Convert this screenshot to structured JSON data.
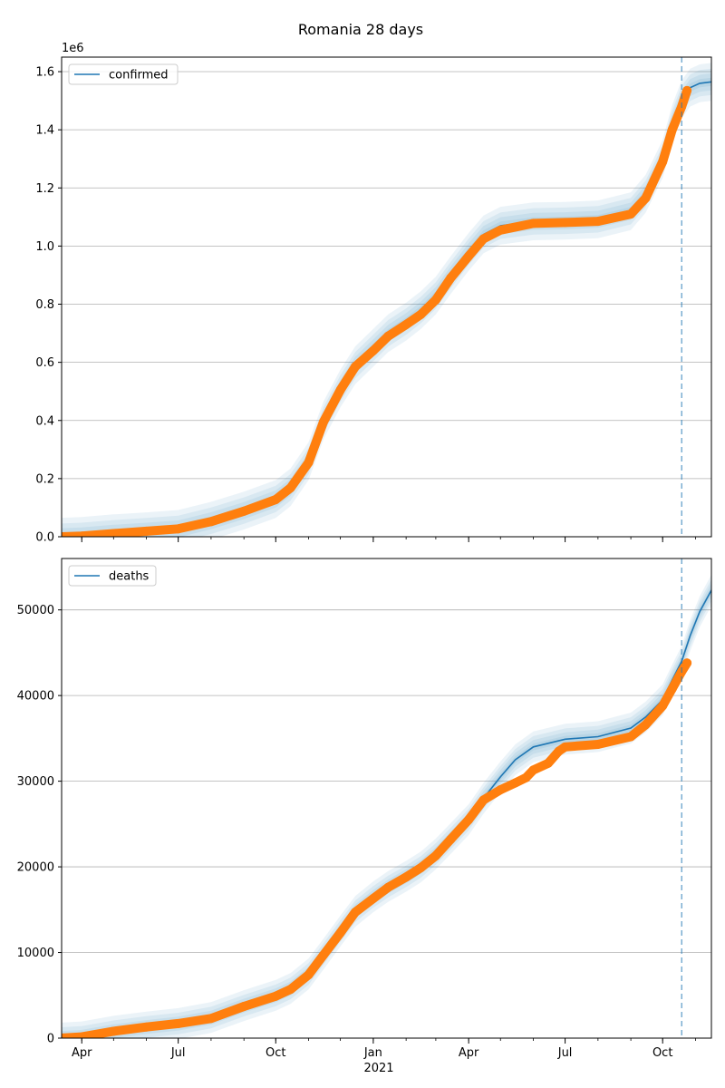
{
  "title": "Romania 28 days",
  "x_year_label": "2021",
  "colors": {
    "model": "#1f77b4",
    "observed": "#ff7f0e",
    "band": "#1f77b4",
    "grid": "#b0b0b0",
    "forecast_line": "#1f77b4"
  },
  "chart_data": [
    {
      "type": "line",
      "legend": "top-left",
      "grid": true,
      "xlim": [
        "2020-03-13",
        "2021-11-16"
      ],
      "forecast_start": "2021-10-19",
      "x_ticks": [
        {
          "date": "2020-04-01",
          "label": "Apr"
        },
        {
          "date": "2020-07-01",
          "label": "Jul"
        },
        {
          "date": "2020-10-01",
          "label": "Oct"
        },
        {
          "date": "2021-01-01",
          "label": "Jan"
        },
        {
          "date": "2021-04-01",
          "label": "Apr"
        },
        {
          "date": "2021-07-01",
          "label": "Jul"
        },
        {
          "date": "2021-10-01",
          "label": "Oct"
        }
      ],
      "x_ticks_visible": false,
      "ylim": [
        0,
        1650000
      ],
      "y_ticks": [
        0,
        200000,
        400000,
        600000,
        800000,
        1000000,
        1200000,
        1400000,
        1600000
      ],
      "y_tick_labels": [
        "0.0",
        "0.2",
        "0.4",
        "0.6",
        "0.8",
        "1.0",
        "1.2",
        "1.4",
        "1.6"
      ],
      "y_offset_label": "1e6",
      "series": [
        {
          "name": "confirmed",
          "role": "model",
          "points": [
            [
              "2020-03-13",
              100
            ],
            [
              "2020-04-01",
              3000
            ],
            [
              "2020-05-01",
              12000
            ],
            [
              "2020-06-01",
              19000
            ],
            [
              "2020-07-01",
              27000
            ],
            [
              "2020-08-01",
              55000
            ],
            [
              "2020-09-01",
              90000
            ],
            [
              "2020-10-01",
              130000
            ],
            [
              "2020-10-15",
              170000
            ],
            [
              "2020-11-01",
              260000
            ],
            [
              "2020-11-15",
              400000
            ],
            [
              "2020-12-01",
              510000
            ],
            [
              "2020-12-15",
              590000
            ],
            [
              "2021-01-01",
              650000
            ],
            [
              "2021-01-15",
              700000
            ],
            [
              "2021-02-01",
              740000
            ],
            [
              "2021-02-15",
              780000
            ],
            [
              "2021-03-01",
              830000
            ],
            [
              "2021-03-15",
              900000
            ],
            [
              "2021-04-01",
              980000
            ],
            [
              "2021-04-15",
              1040000
            ],
            [
              "2021-05-01",
              1070000
            ],
            [
              "2021-06-01",
              1085000
            ],
            [
              "2021-07-01",
              1087000
            ],
            [
              "2021-08-01",
              1092000
            ],
            [
              "2021-09-01",
              1120000
            ],
            [
              "2021-09-15",
              1180000
            ],
            [
              "2021-10-01",
              1300000
            ],
            [
              "2021-10-10",
              1420000
            ],
            [
              "2021-10-19",
              1505000
            ],
            [
              "2021-10-27",
              1545000
            ],
            [
              "2021-11-05",
              1560000
            ],
            [
              "2021-11-16",
              1565000
            ]
          ],
          "band_spread": 65000
        },
        {
          "name": "",
          "role": "observed",
          "points": [
            [
              "2020-03-13",
              100
            ],
            [
              "2020-04-01",
              2500
            ],
            [
              "2020-05-01",
              11000
            ],
            [
              "2020-06-01",
              19000
            ],
            [
              "2020-07-01",
              27000
            ],
            [
              "2020-08-01",
              52000
            ],
            [
              "2020-09-01",
              88000
            ],
            [
              "2020-10-01",
              128000
            ],
            [
              "2020-10-15",
              168000
            ],
            [
              "2020-11-01",
              255000
            ],
            [
              "2020-11-15",
              395000
            ],
            [
              "2020-12-01",
              505000
            ],
            [
              "2020-12-15",
              585000
            ],
            [
              "2021-01-01",
              640000
            ],
            [
              "2021-01-15",
              690000
            ],
            [
              "2021-02-01",
              730000
            ],
            [
              "2021-02-15",
              765000
            ],
            [
              "2021-03-01",
              815000
            ],
            [
              "2021-03-15",
              890000
            ],
            [
              "2021-04-01",
              965000
            ],
            [
              "2021-04-15",
              1025000
            ],
            [
              "2021-05-01",
              1055000
            ],
            [
              "2021-06-01",
              1078000
            ],
            [
              "2021-07-01",
              1081000
            ],
            [
              "2021-08-01",
              1085000
            ],
            [
              "2021-09-01",
              1110000
            ],
            [
              "2021-09-15",
              1165000
            ],
            [
              "2021-10-01",
              1290000
            ],
            [
              "2021-10-10",
              1400000
            ],
            [
              "2021-10-19",
              1480000
            ],
            [
              "2021-10-24",
              1535000
            ]
          ]
        }
      ]
    },
    {
      "type": "line",
      "legend": "top-left",
      "grid": true,
      "xlim": [
        "2020-03-13",
        "2021-11-16"
      ],
      "forecast_start": "2021-10-19",
      "x_ticks": [
        {
          "date": "2020-04-01",
          "label": "Apr"
        },
        {
          "date": "2020-07-01",
          "label": "Jul"
        },
        {
          "date": "2020-10-01",
          "label": "Oct"
        },
        {
          "date": "2021-01-01",
          "label": "Jan"
        },
        {
          "date": "2021-04-01",
          "label": "Apr"
        },
        {
          "date": "2021-07-01",
          "label": "Jul"
        },
        {
          "date": "2021-10-01",
          "label": "Oct"
        }
      ],
      "x_ticks_visible": true,
      "ylim": [
        0,
        56000
      ],
      "y_ticks": [
        0,
        10000,
        20000,
        30000,
        40000,
        50000
      ],
      "y_tick_labels": [
        "0",
        "10000",
        "20000",
        "30000",
        "40000",
        "50000"
      ],
      "series": [
        {
          "name": "deaths",
          "role": "model",
          "points": [
            [
              "2020-03-13",
              10
            ],
            [
              "2020-04-01",
              150
            ],
            [
              "2020-05-01",
              800
            ],
            [
              "2020-06-01",
              1300
            ],
            [
              "2020-07-01",
              1700
            ],
            [
              "2020-08-01",
              2400
            ],
            [
              "2020-09-01",
              3800
            ],
            [
              "2020-10-01",
              5000
            ],
            [
              "2020-10-15",
              5800
            ],
            [
              "2020-11-01",
              7500
            ],
            [
              "2020-11-15",
              9800
            ],
            [
              "2020-12-01",
              12500
            ],
            [
              "2020-12-15",
              14800
            ],
            [
              "2021-01-01",
              16500
            ],
            [
              "2021-01-15",
              17700
            ],
            [
              "2021-02-01",
              18900
            ],
            [
              "2021-02-15",
              20000
            ],
            [
              "2021-03-01",
              21500
            ],
            [
              "2021-03-15",
              23300
            ],
            [
              "2021-04-01",
              25500
            ],
            [
              "2021-04-15",
              28000
            ],
            [
              "2021-05-01",
              30500
            ],
            [
              "2021-05-15",
              32500
            ],
            [
              "2021-06-01",
              34000
            ],
            [
              "2021-07-01",
              34900
            ],
            [
              "2021-08-01",
              35200
            ],
            [
              "2021-09-01",
              36200
            ],
            [
              "2021-09-15",
              37500
            ],
            [
              "2021-10-01",
              39500
            ],
            [
              "2021-10-10",
              41800
            ],
            [
              "2021-10-19",
              44000
            ],
            [
              "2021-10-27",
              47000
            ],
            [
              "2021-11-05",
              49800
            ],
            [
              "2021-11-16",
              52300
            ]
          ],
          "band_spread": 1800
        },
        {
          "name": "",
          "role": "observed",
          "points": [
            [
              "2020-03-13",
              10
            ],
            [
              "2020-04-01",
              150
            ],
            [
              "2020-05-01",
              800
            ],
            [
              "2020-06-01",
              1300
            ],
            [
              "2020-07-01",
              1700
            ],
            [
              "2020-08-01",
              2300
            ],
            [
              "2020-09-01",
              3700
            ],
            [
              "2020-10-01",
              4900
            ],
            [
              "2020-10-15",
              5700
            ],
            [
              "2020-11-01",
              7400
            ],
            [
              "2020-11-15",
              9700
            ],
            [
              "2020-12-01",
              12300
            ],
            [
              "2020-12-15",
              14700
            ],
            [
              "2021-01-01",
              16300
            ],
            [
              "2021-01-15",
              17600
            ],
            [
              "2021-02-01",
              18800
            ],
            [
              "2021-02-15",
              19900
            ],
            [
              "2021-03-01",
              21300
            ],
            [
              "2021-03-15",
              23200
            ],
            [
              "2021-04-01",
              25500
            ],
            [
              "2021-04-15",
              27800
            ],
            [
              "2021-05-01",
              29000
            ],
            [
              "2021-05-15",
              29800
            ],
            [
              "2021-05-25",
              30400
            ],
            [
              "2021-06-01",
              31300
            ],
            [
              "2021-06-15",
              32100
            ],
            [
              "2021-06-25",
              33500
            ],
            [
              "2021-07-01",
              34000
            ],
            [
              "2021-08-01",
              34300
            ],
            [
              "2021-09-01",
              35200
            ],
            [
              "2021-09-15",
              36600
            ],
            [
              "2021-10-01",
              38800
            ],
            [
              "2021-10-10",
              40800
            ],
            [
              "2021-10-19",
              42800
            ],
            [
              "2021-10-24",
              43800
            ]
          ]
        }
      ]
    }
  ]
}
